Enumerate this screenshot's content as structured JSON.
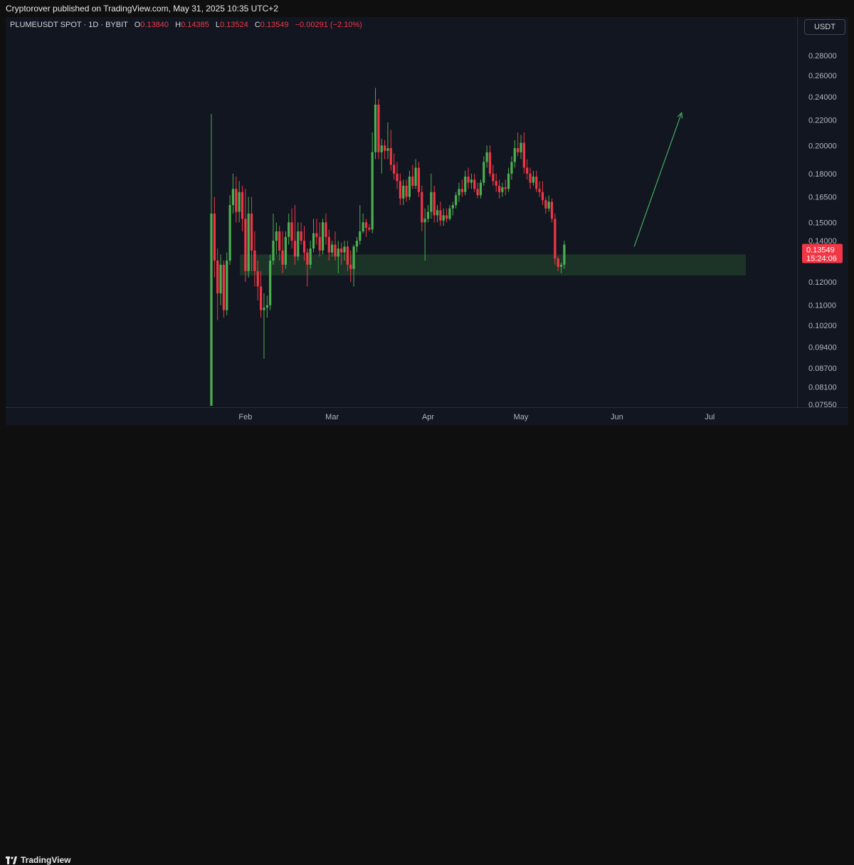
{
  "header": {
    "publisher_line": "Cryptorover published on TradingView.com, May 31, 2025 10:35 UTC+2"
  },
  "legend": {
    "symbol": "PLUMEUSDT SPOT · 1D · BYBIT",
    "o_label": "O",
    "o_value": "0.13840",
    "h_label": "H",
    "h_value": "0.14385",
    "l_label": "L",
    "l_value": "0.13524",
    "c_label": "C",
    "c_value": "0.13549",
    "change": "−0.00291 (−2.10%)"
  },
  "currency_button": "USDT",
  "footer": {
    "brand": "TradingView",
    "logo_icon": "tradingview-logo-icon"
  },
  "colors": {
    "up": "#26a69a",
    "up_fill": "#4caf50",
    "down": "#f23645",
    "zone": "#1e3a2a",
    "arrow": "#3fa35a",
    "price_tag": "#f23645"
  },
  "chart_data": {
    "type": "candlestick",
    "symbol": "PLUMEUSDT",
    "timeframe": "1D",
    "exchange": "BYBIT",
    "y_scale": "log",
    "ylim": [
      0.0755,
      0.3
    ],
    "y_ticks": [
      "0.28000",
      "0.26000",
      "0.24000",
      "0.22000",
      "0.20000",
      "0.18000",
      "0.16500",
      "0.15000",
      "0.14000",
      "0.12000",
      "0.11000",
      "0.10200",
      "0.09400",
      "0.08700",
      "0.08100",
      "0.07550"
    ],
    "x_ticks": [
      "Feb",
      "Mar",
      "Apr",
      "May",
      "Jun",
      "Jul"
    ],
    "x_tick_dates": [
      "2025-02-01",
      "2025-03-01",
      "2025-04-01",
      "2025-05-01",
      "2025-06-01",
      "2025-07-01"
    ],
    "last_price": {
      "value": "0.13549",
      "countdown": "15:24:06"
    },
    "support_zone": {
      "low": 0.123,
      "high": 0.133,
      "from": "2025-01-21",
      "to": "2025-07-12"
    },
    "projection_arrow": {
      "from_date": "2025-06-02",
      "from_price": 0.137,
      "to_date": "2025-06-15",
      "to_price": 0.226
    },
    "candles": [
      {
        "d": "2025-01-21",
        "o": 0.0755,
        "h": 0.225,
        "l": 0.0755,
        "c": 0.155
      },
      {
        "d": "2025-01-22",
        "o": 0.155,
        "h": 0.165,
        "l": 0.122,
        "c": 0.13
      },
      {
        "d": "2025-01-23",
        "o": 0.13,
        "h": 0.136,
        "l": 0.104,
        "c": 0.115
      },
      {
        "d": "2025-01-24",
        "o": 0.115,
        "h": 0.133,
        "l": 0.11,
        "c": 0.128
      },
      {
        "d": "2025-01-25",
        "o": 0.128,
        "h": 0.13,
        "l": 0.105,
        "c": 0.108
      },
      {
        "d": "2025-01-26",
        "o": 0.108,
        "h": 0.134,
        "l": 0.106,
        "c": 0.13
      },
      {
        "d": "2025-01-27",
        "o": 0.13,
        "h": 0.166,
        "l": 0.128,
        "c": 0.16
      },
      {
        "d": "2025-01-28",
        "o": 0.16,
        "h": 0.18,
        "l": 0.155,
        "c": 0.17
      },
      {
        "d": "2025-01-29",
        "o": 0.17,
        "h": 0.178,
        "l": 0.15,
        "c": 0.156
      },
      {
        "d": "2025-01-30",
        "o": 0.156,
        "h": 0.175,
        "l": 0.15,
        "c": 0.168
      },
      {
        "d": "2025-01-31",
        "o": 0.168,
        "h": 0.172,
        "l": 0.145,
        "c": 0.152
      },
      {
        "d": "2025-02-01",
        "o": 0.152,
        "h": 0.17,
        "l": 0.12,
        "c": 0.125
      },
      {
        "d": "2025-02-02",
        "o": 0.125,
        "h": 0.165,
        "l": 0.122,
        "c": 0.155
      },
      {
        "d": "2025-02-03",
        "o": 0.155,
        "h": 0.165,
        "l": 0.125,
        "c": 0.135
      },
      {
        "d": "2025-02-04",
        "o": 0.135,
        "h": 0.145,
        "l": 0.118,
        "c": 0.125
      },
      {
        "d": "2025-02-05",
        "o": 0.125,
        "h": 0.13,
        "l": 0.112,
        "c": 0.118
      },
      {
        "d": "2025-02-06",
        "o": 0.118,
        "h": 0.125,
        "l": 0.105,
        "c": 0.108
      },
      {
        "d": "2025-02-07",
        "o": 0.108,
        "h": 0.115,
        "l": 0.09,
        "c": 0.109
      },
      {
        "d": "2025-02-08",
        "o": 0.109,
        "h": 0.114,
        "l": 0.105,
        "c": 0.11
      },
      {
        "d": "2025-02-09",
        "o": 0.11,
        "h": 0.133,
        "l": 0.108,
        "c": 0.13
      },
      {
        "d": "2025-02-10",
        "o": 0.13,
        "h": 0.155,
        "l": 0.128,
        "c": 0.14
      },
      {
        "d": "2025-02-11",
        "o": 0.14,
        "h": 0.15,
        "l": 0.133,
        "c": 0.145
      },
      {
        "d": "2025-02-12",
        "o": 0.145,
        "h": 0.148,
        "l": 0.13,
        "c": 0.135
      },
      {
        "d": "2025-02-13",
        "o": 0.135,
        "h": 0.145,
        "l": 0.124,
        "c": 0.128
      },
      {
        "d": "2025-02-14",
        "o": 0.128,
        "h": 0.145,
        "l": 0.126,
        "c": 0.142
      },
      {
        "d": "2025-02-15",
        "o": 0.142,
        "h": 0.155,
        "l": 0.138,
        "c": 0.15
      },
      {
        "d": "2025-02-16",
        "o": 0.15,
        "h": 0.158,
        "l": 0.136,
        "c": 0.14
      },
      {
        "d": "2025-02-17",
        "o": 0.14,
        "h": 0.16,
        "l": 0.128,
        "c": 0.132
      },
      {
        "d": "2025-02-18",
        "o": 0.132,
        "h": 0.15,
        "l": 0.13,
        "c": 0.145
      },
      {
        "d": "2025-02-19",
        "o": 0.145,
        "h": 0.15,
        "l": 0.138,
        "c": 0.14
      },
      {
        "d": "2025-02-20",
        "o": 0.14,
        "h": 0.148,
        "l": 0.13,
        "c": 0.134
      },
      {
        "d": "2025-02-21",
        "o": 0.134,
        "h": 0.136,
        "l": 0.118,
        "c": 0.128
      },
      {
        "d": "2025-02-22",
        "o": 0.128,
        "h": 0.14,
        "l": 0.126,
        "c": 0.136
      },
      {
        "d": "2025-02-23",
        "o": 0.136,
        "h": 0.152,
        "l": 0.134,
        "c": 0.144
      },
      {
        "d": "2025-02-24",
        "o": 0.144,
        "h": 0.152,
        "l": 0.138,
        "c": 0.142
      },
      {
        "d": "2025-02-25",
        "o": 0.142,
        "h": 0.15,
        "l": 0.132,
        "c": 0.135
      },
      {
        "d": "2025-02-26",
        "o": 0.135,
        "h": 0.152,
        "l": 0.133,
        "c": 0.15
      },
      {
        "d": "2025-02-27",
        "o": 0.15,
        "h": 0.155,
        "l": 0.138,
        "c": 0.142
      },
      {
        "d": "2025-02-28",
        "o": 0.142,
        "h": 0.146,
        "l": 0.13,
        "c": 0.134
      },
      {
        "d": "2025-03-01",
        "o": 0.134,
        "h": 0.14,
        "l": 0.132,
        "c": 0.138
      },
      {
        "d": "2025-03-02",
        "o": 0.138,
        "h": 0.145,
        "l": 0.13,
        "c": 0.132
      },
      {
        "d": "2025-03-03",
        "o": 0.132,
        "h": 0.14,
        "l": 0.124,
        "c": 0.136
      },
      {
        "d": "2025-03-04",
        "o": 0.136,
        "h": 0.139,
        "l": 0.128,
        "c": 0.134
      },
      {
        "d": "2025-03-05",
        "o": 0.134,
        "h": 0.14,
        "l": 0.13,
        "c": 0.137
      },
      {
        "d": "2025-03-06",
        "o": 0.137,
        "h": 0.14,
        "l": 0.125,
        "c": 0.128
      },
      {
        "d": "2025-03-07",
        "o": 0.128,
        "h": 0.135,
        "l": 0.12,
        "c": 0.126
      },
      {
        "d": "2025-03-08",
        "o": 0.126,
        "h": 0.138,
        "l": 0.118,
        "c": 0.137
      },
      {
        "d": "2025-03-09",
        "o": 0.137,
        "h": 0.142,
        "l": 0.134,
        "c": 0.14
      },
      {
        "d": "2025-03-10",
        "o": 0.14,
        "h": 0.16,
        "l": 0.138,
        "c": 0.145
      },
      {
        "d": "2025-03-11",
        "o": 0.145,
        "h": 0.155,
        "l": 0.144,
        "c": 0.15
      },
      {
        "d": "2025-03-12",
        "o": 0.15,
        "h": 0.152,
        "l": 0.142,
        "c": 0.147
      },
      {
        "d": "2025-03-13",
        "o": 0.147,
        "h": 0.149,
        "l": 0.145,
        "c": 0.146
      },
      {
        "d": "2025-03-14",
        "o": 0.146,
        "h": 0.21,
        "l": 0.144,
        "c": 0.195
      },
      {
        "d": "2025-03-15",
        "o": 0.195,
        "h": 0.248,
        "l": 0.19,
        "c": 0.233
      },
      {
        "d": "2025-03-16",
        "o": 0.233,
        "h": 0.238,
        "l": 0.19,
        "c": 0.195
      },
      {
        "d": "2025-03-17",
        "o": 0.195,
        "h": 0.205,
        "l": 0.18,
        "c": 0.2
      },
      {
        "d": "2025-03-18",
        "o": 0.2,
        "h": 0.204,
        "l": 0.19,
        "c": 0.196
      },
      {
        "d": "2025-03-19",
        "o": 0.196,
        "h": 0.218,
        "l": 0.19,
        "c": 0.198
      },
      {
        "d": "2025-03-20",
        "o": 0.198,
        "h": 0.212,
        "l": 0.182,
        "c": 0.186
      },
      {
        "d": "2025-03-21",
        "o": 0.186,
        "h": 0.194,
        "l": 0.176,
        "c": 0.18
      },
      {
        "d": "2025-03-22",
        "o": 0.18,
        "h": 0.188,
        "l": 0.17,
        "c": 0.175
      },
      {
        "d": "2025-03-23",
        "o": 0.175,
        "h": 0.18,
        "l": 0.16,
        "c": 0.164
      },
      {
        "d": "2025-03-24",
        "o": 0.164,
        "h": 0.176,
        "l": 0.16,
        "c": 0.172
      },
      {
        "d": "2025-03-25",
        "o": 0.172,
        "h": 0.176,
        "l": 0.162,
        "c": 0.165
      },
      {
        "d": "2025-03-26",
        "o": 0.165,
        "h": 0.182,
        "l": 0.163,
        "c": 0.178
      },
      {
        "d": "2025-03-27",
        "o": 0.178,
        "h": 0.186,
        "l": 0.17,
        "c": 0.172
      },
      {
        "d": "2025-03-28",
        "o": 0.172,
        "h": 0.19,
        "l": 0.17,
        "c": 0.184
      },
      {
        "d": "2025-03-29",
        "o": 0.184,
        "h": 0.188,
        "l": 0.165,
        "c": 0.168
      },
      {
        "d": "2025-03-30",
        "o": 0.168,
        "h": 0.172,
        "l": 0.145,
        "c": 0.15
      },
      {
        "d": "2025-03-31",
        "o": 0.15,
        "h": 0.158,
        "l": 0.13,
        "c": 0.152
      },
      {
        "d": "2025-04-01",
        "o": 0.152,
        "h": 0.16,
        "l": 0.15,
        "c": 0.156
      },
      {
        "d": "2025-04-02",
        "o": 0.156,
        "h": 0.18,
        "l": 0.152,
        "c": 0.168
      },
      {
        "d": "2025-04-03",
        "o": 0.168,
        "h": 0.172,
        "l": 0.15,
        "c": 0.154
      },
      {
        "d": "2025-04-04",
        "o": 0.154,
        "h": 0.16,
        "l": 0.15,
        "c": 0.157
      },
      {
        "d": "2025-04-05",
        "o": 0.157,
        "h": 0.162,
        "l": 0.148,
        "c": 0.151
      },
      {
        "d": "2025-04-06",
        "o": 0.151,
        "h": 0.158,
        "l": 0.148,
        "c": 0.154
      },
      {
        "d": "2025-04-07",
        "o": 0.154,
        "h": 0.158,
        "l": 0.15,
        "c": 0.152
      },
      {
        "d": "2025-04-08",
        "o": 0.152,
        "h": 0.16,
        "l": 0.151,
        "c": 0.158
      },
      {
        "d": "2025-04-09",
        "o": 0.158,
        "h": 0.162,
        "l": 0.154,
        "c": 0.16
      },
      {
        "d": "2025-04-10",
        "o": 0.16,
        "h": 0.168,
        "l": 0.158,
        "c": 0.166
      },
      {
        "d": "2025-04-11",
        "o": 0.166,
        "h": 0.174,
        "l": 0.162,
        "c": 0.17
      },
      {
        "d": "2025-04-12",
        "o": 0.17,
        "h": 0.176,
        "l": 0.165,
        "c": 0.168
      },
      {
        "d": "2025-04-13",
        "o": 0.168,
        "h": 0.182,
        "l": 0.166,
        "c": 0.178
      },
      {
        "d": "2025-04-14",
        "o": 0.178,
        "h": 0.184,
        "l": 0.17,
        "c": 0.174
      },
      {
        "d": "2025-04-15",
        "o": 0.174,
        "h": 0.18,
        "l": 0.17,
        "c": 0.176
      },
      {
        "d": "2025-04-16",
        "o": 0.176,
        "h": 0.18,
        "l": 0.168,
        "c": 0.17
      },
      {
        "d": "2025-04-17",
        "o": 0.17,
        "h": 0.174,
        "l": 0.164,
        "c": 0.166
      },
      {
        "d": "2025-04-18",
        "o": 0.166,
        "h": 0.176,
        "l": 0.164,
        "c": 0.174
      },
      {
        "d": "2025-04-19",
        "o": 0.174,
        "h": 0.192,
        "l": 0.172,
        "c": 0.188
      },
      {
        "d": "2025-04-20",
        "o": 0.188,
        "h": 0.2,
        "l": 0.184,
        "c": 0.195
      },
      {
        "d": "2025-04-21",
        "o": 0.195,
        "h": 0.2,
        "l": 0.178,
        "c": 0.18
      },
      {
        "d": "2025-04-22",
        "o": 0.18,
        "h": 0.186,
        "l": 0.172,
        "c": 0.175
      },
      {
        "d": "2025-04-23",
        "o": 0.175,
        "h": 0.18,
        "l": 0.168,
        "c": 0.172
      },
      {
        "d": "2025-04-24",
        "o": 0.172,
        "h": 0.176,
        "l": 0.164,
        "c": 0.168
      },
      {
        "d": "2025-04-25",
        "o": 0.168,
        "h": 0.174,
        "l": 0.165,
        "c": 0.171
      },
      {
        "d": "2025-04-26",
        "o": 0.171,
        "h": 0.176,
        "l": 0.166,
        "c": 0.17
      },
      {
        "d": "2025-04-27",
        "o": 0.17,
        "h": 0.184,
        "l": 0.168,
        "c": 0.18
      },
      {
        "d": "2025-04-28",
        "o": 0.18,
        "h": 0.192,
        "l": 0.176,
        "c": 0.188
      },
      {
        "d": "2025-04-29",
        "o": 0.188,
        "h": 0.204,
        "l": 0.184,
        "c": 0.198
      },
      {
        "d": "2025-04-30",
        "o": 0.198,
        "h": 0.21,
        "l": 0.192,
        "c": 0.195
      },
      {
        "d": "2025-05-01",
        "o": 0.195,
        "h": 0.208,
        "l": 0.19,
        "c": 0.202
      },
      {
        "d": "2025-05-02",
        "o": 0.202,
        "h": 0.21,
        "l": 0.18,
        "c": 0.184
      },
      {
        "d": "2025-05-03",
        "o": 0.184,
        "h": 0.19,
        "l": 0.176,
        "c": 0.18
      },
      {
        "d": "2025-05-04",
        "o": 0.18,
        "h": 0.184,
        "l": 0.17,
        "c": 0.174
      },
      {
        "d": "2025-05-05",
        "o": 0.174,
        "h": 0.182,
        "l": 0.172,
        "c": 0.178
      },
      {
        "d": "2025-05-06",
        "o": 0.178,
        "h": 0.182,
        "l": 0.168,
        "c": 0.17
      },
      {
        "d": "2025-05-07",
        "o": 0.17,
        "h": 0.175,
        "l": 0.165,
        "c": 0.168
      },
      {
        "d": "2025-05-08",
        "o": 0.168,
        "h": 0.175,
        "l": 0.16,
        "c": 0.163
      },
      {
        "d": "2025-05-09",
        "o": 0.163,
        "h": 0.165,
        "l": 0.155,
        "c": 0.158
      },
      {
        "d": "2025-05-10",
        "o": 0.158,
        "h": 0.166,
        "l": 0.156,
        "c": 0.162
      },
      {
        "d": "2025-05-11",
        "o": 0.162,
        "h": 0.164,
        "l": 0.15,
        "c": 0.152
      },
      {
        "d": "2025-05-12",
        "o": 0.152,
        "h": 0.155,
        "l": 0.128,
        "c": 0.131
      },
      {
        "d": "2025-05-13",
        "o": 0.131,
        "h": 0.132,
        "l": 0.125,
        "c": 0.127
      },
      {
        "d": "2025-05-14",
        "o": 0.127,
        "h": 0.129,
        "l": 0.124,
        "c": 0.128
      },
      {
        "d": "2025-05-15",
        "o": 0.128,
        "h": 0.14,
        "l": 0.126,
        "c": 0.138
      }
    ]
  }
}
